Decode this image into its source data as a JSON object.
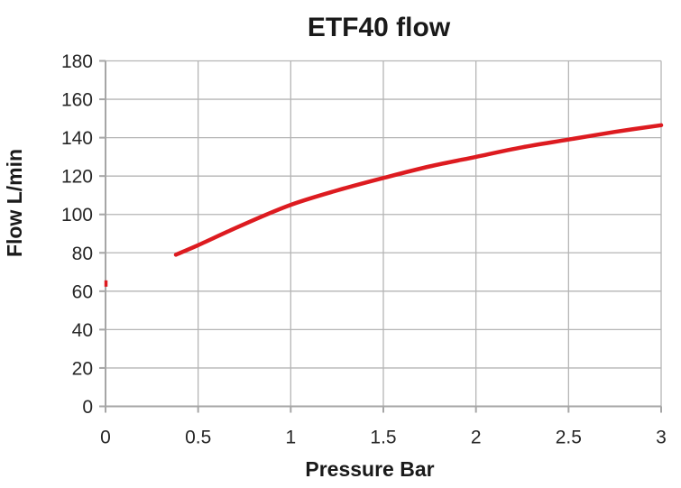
{
  "chart_data": {
    "type": "line",
    "title": "ETF40 flow",
    "xlabel": "Pressure Bar",
    "ylabel": "Flow L/min",
    "xlim": [
      0,
      3
    ],
    "ylim": [
      0,
      180
    ],
    "x_ticks": [
      0,
      0.5,
      1,
      1.5,
      2,
      2.5,
      3
    ],
    "x_tick_labels": [
      "0",
      "0.5",
      "1",
      "1.5",
      "2",
      "2.5",
      "3"
    ],
    "y_ticks": [
      0,
      20,
      40,
      60,
      80,
      100,
      120,
      140,
      160,
      180
    ],
    "y_tick_labels": [
      "0",
      "20",
      "40",
      "60",
      "80",
      "100",
      "120",
      "140",
      "160",
      "180"
    ],
    "grid": true,
    "legend": "none",
    "series": [
      {
        "name": "ETF40 flow",
        "color": "#dd1b20",
        "x": [
          0.38,
          0.5,
          0.75,
          1.0,
          1.25,
          1.5,
          1.75,
          2.0,
          2.25,
          2.5,
          2.75,
          3.0
        ],
        "y": [
          79,
          84,
          95,
          105,
          112.5,
          119,
          125,
          130,
          135,
          139,
          143,
          146.5
        ]
      }
    ],
    "stray_point": {
      "x": 0,
      "y": 64
    }
  },
  "colors": {
    "background": "#ffffff",
    "curve": "#dd1b20",
    "gridline": "#b5b5b5",
    "axis": "#a6a6a6",
    "text": "#1a1a1a",
    "tick_text": "#262626"
  }
}
